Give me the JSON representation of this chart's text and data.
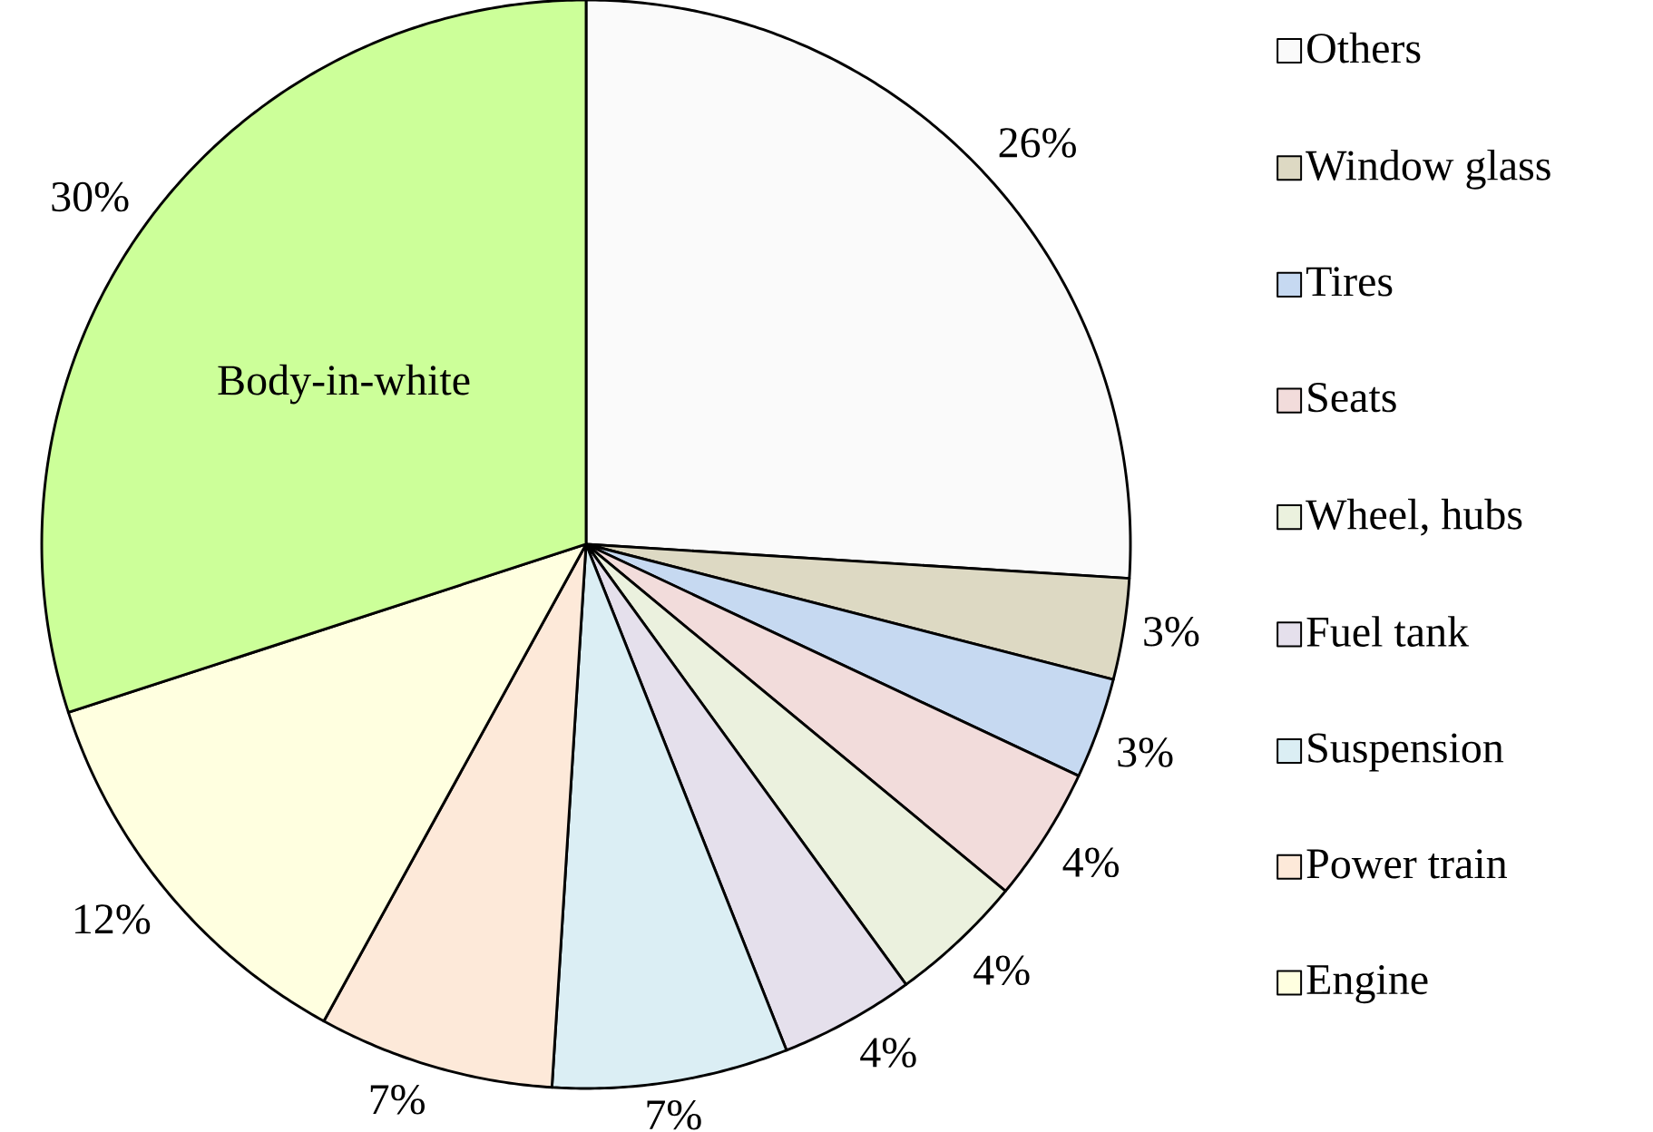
{
  "chart_data": {
    "type": "pie",
    "categories": [
      "Others",
      "Window glass",
      "Tires",
      "Seats",
      "Wheel, hubs",
      "Fuel tank",
      "Suspension",
      "Power train",
      "Engine",
      null
    ],
    "values": [
      26,
      3,
      3,
      4,
      4,
      4,
      7,
      7,
      12,
      30
    ],
    "value_labels": [
      "26%",
      "3%",
      "3%",
      "4%",
      "4%",
      "4%",
      "7%",
      "7%",
      "12%",
      "30%"
    ],
    "colors": [
      "#fafafa",
      "#ddd9c3",
      "#c6d9f1",
      "#f2dcdb",
      "#ebf1de",
      "#e5e0ec",
      "#dbeef4",
      "#fde9d9",
      "#ffffe0",
      "#ccff99"
    ],
    "annotations": [
      "Body-in-white"
    ],
    "legend": "right"
  }
}
